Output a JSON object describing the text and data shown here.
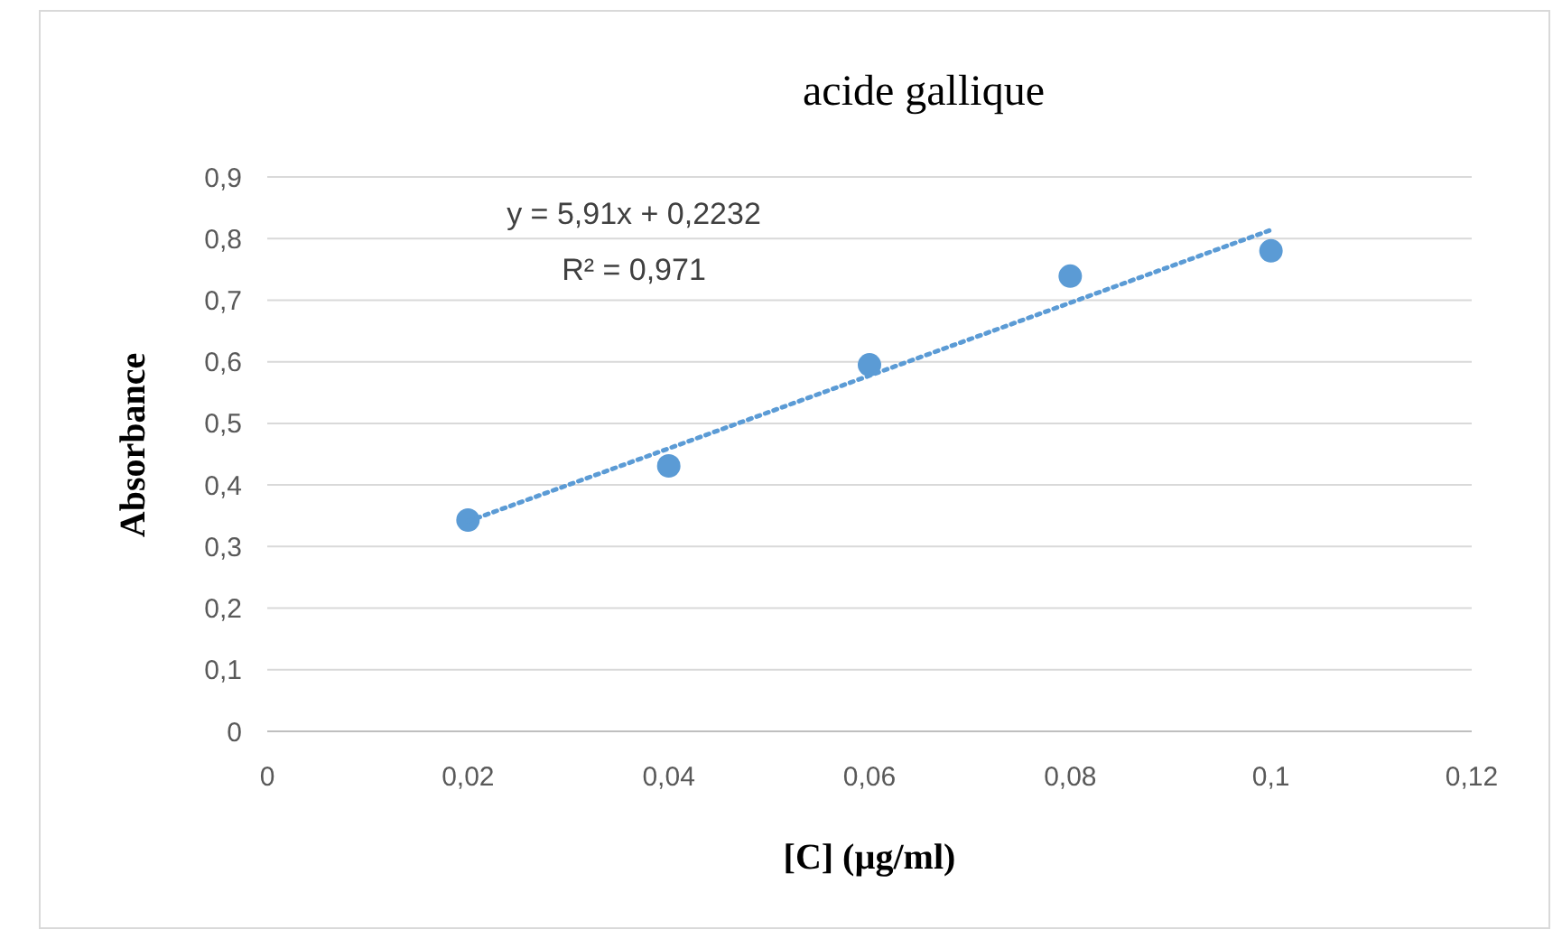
{
  "chart_data": {
    "type": "scatter",
    "title": "acide gallique",
    "xlabel": "[C]  (µg/ml)",
    "ylabel": "Absorbance",
    "annotations": [
      "y = 5,91x + 0,2232",
      "R² = 0,971"
    ],
    "series": [
      {
        "color": "#5b9bd5",
        "marker": "circle",
        "x": [
          0.02,
          0.04,
          0.06,
          0.08,
          0.1
        ],
        "values": [
          0.343,
          0.431,
          0.595,
          0.739,
          0.78
        ]
      },
      {
        "type": "line",
        "color": "#5b9bd5",
        "marker": "none",
        "line_style": "dotted",
        "x": [
          0.02,
          0.1
        ],
        "values": [
          0.341,
          0.814
        ]
      }
    ],
    "xlim": [
      0,
      0.12
    ],
    "xticks": [
      {
        "value": 0,
        "label": "0"
      },
      {
        "value": 0.02,
        "label": "0,02"
      },
      {
        "value": 0.04,
        "label": "0,04"
      },
      {
        "value": 0.06,
        "label": "0,06"
      },
      {
        "value": 0.08,
        "label": "0,08"
      },
      {
        "value": 0.1,
        "label": "0,1"
      },
      {
        "value": 0.12,
        "label": "0,12"
      }
    ],
    "ylim": [
      0,
      0.9
    ],
    "yticks": [
      {
        "value": 0,
        "label": "0"
      },
      {
        "value": 0.1,
        "label": "0,1"
      },
      {
        "value": 0.2,
        "label": "0,2"
      },
      {
        "value": 0.3,
        "label": "0,3"
      },
      {
        "value": 0.4,
        "label": "0,4"
      },
      {
        "value": 0.5,
        "label": "0,5"
      },
      {
        "value": 0.6,
        "label": "0,6"
      },
      {
        "value": 0.7,
        "label": "0,7"
      },
      {
        "value": 0.8,
        "label": "0,8"
      },
      {
        "value": 0.9,
        "label": "0,9"
      }
    ],
    "grid": "y"
  }
}
